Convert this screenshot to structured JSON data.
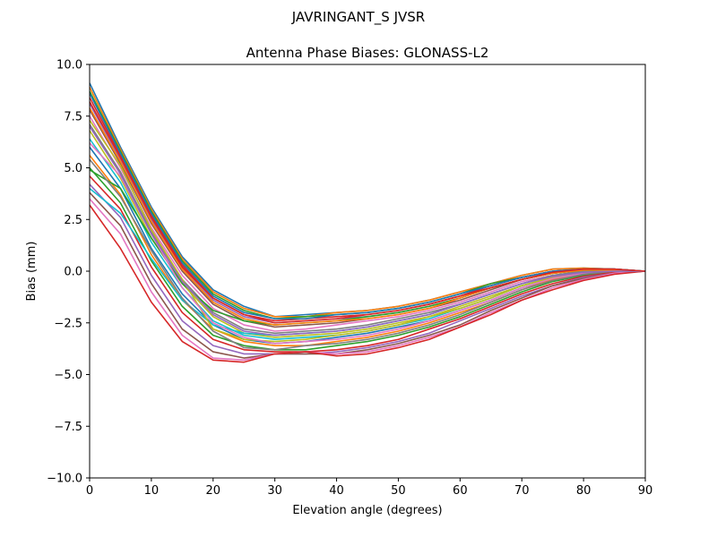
{
  "suptitle": "JAVRINGANT_S    JVSR",
  "chart_data": {
    "type": "line",
    "title": "Antenna Phase Biases: GLONASS-L2",
    "xlabel": "Elevation angle (degrees)",
    "ylabel": "Bias (mm)",
    "xlim": [
      0,
      90
    ],
    "ylim": [
      -10,
      10
    ],
    "xticks": [
      0,
      10,
      20,
      30,
      40,
      50,
      60,
      70,
      80,
      90
    ],
    "yticks": [
      -10.0,
      -7.5,
      -5.0,
      -2.5,
      0.0,
      2.5,
      5.0,
      7.5,
      10.0
    ],
    "xtick_labels": [
      "0",
      "10",
      "20",
      "30",
      "40",
      "50",
      "60",
      "70",
      "80",
      "90"
    ],
    "ytick_labels": [
      "−10.0",
      "−7.5",
      "−5.0",
      "−2.5",
      "0.0",
      "2.5",
      "5.0",
      "7.5",
      "10.0"
    ],
    "grid": false,
    "legend": false,
    "x": [
      0,
      5,
      10,
      15,
      20,
      25,
      30,
      35,
      40,
      45,
      50,
      55,
      60,
      65,
      70,
      75,
      80,
      85,
      90
    ],
    "series": [
      {
        "color": "#1f77b4",
        "values": [
          9.1,
          6.0,
          3.1,
          0.7,
          -0.9,
          -1.7,
          -2.2,
          -2.1,
          -2.0,
          -1.9,
          -1.7,
          -1.4,
          -1.0,
          -0.6,
          -0.2,
          0.1,
          0.15,
          0.1,
          0.0
        ]
      },
      {
        "color": "#ff7f0e",
        "values": [
          8.9,
          5.9,
          3.0,
          0.6,
          -1.0,
          -1.8,
          -2.2,
          -2.2,
          -2.0,
          -1.9,
          -1.7,
          -1.4,
          -1.0,
          -0.6,
          -0.2,
          0.1,
          0.15,
          0.1,
          0.0
        ]
      },
      {
        "color": "#2ca02c",
        "values": [
          8.7,
          5.8,
          2.9,
          0.5,
          -1.1,
          -1.9,
          -2.3,
          -2.2,
          -2.1,
          -2.0,
          -1.8,
          -1.5,
          -1.1,
          -0.6,
          -0.3,
          0.0,
          0.1,
          0.1,
          0.0
        ]
      },
      {
        "color": "#d62728",
        "values": [
          8.4,
          5.6,
          2.7,
          0.3,
          -1.3,
          -2.1,
          -2.4,
          -2.3,
          -2.2,
          -2.1,
          -1.9,
          -1.6,
          -1.2,
          -0.7,
          -0.3,
          0.0,
          0.1,
          0.1,
          0.0
        ]
      },
      {
        "color": "#9467bd",
        "values": [
          8.1,
          5.4,
          2.5,
          0.2,
          -1.4,
          -2.2,
          -2.5,
          -2.4,
          -2.3,
          -2.2,
          -2.0,
          -1.7,
          -1.3,
          -0.8,
          -0.4,
          -0.1,
          0.05,
          0.05,
          0.0
        ]
      },
      {
        "color": "#8c564b",
        "values": [
          7.8,
          5.2,
          2.3,
          0.0,
          -1.6,
          -2.4,
          -2.7,
          -2.6,
          -2.5,
          -2.3,
          -2.1,
          -1.8,
          -1.4,
          -0.9,
          -0.4,
          -0.1,
          0.05,
          0.05,
          0.0
        ]
      },
      {
        "color": "#e377c2",
        "values": [
          7.5,
          5.0,
          2.1,
          -0.2,
          -1.8,
          -2.6,
          -2.9,
          -2.8,
          -2.6,
          -2.4,
          -2.2,
          -1.9,
          -1.5,
          -1.0,
          -0.5,
          -0.2,
          0.0,
          0.05,
          0.0
        ]
      },
      {
        "color": "#7f7f7f",
        "values": [
          7.1,
          4.8,
          1.9,
          -0.4,
          -2.0,
          -2.8,
          -3.0,
          -2.9,
          -2.8,
          -2.6,
          -2.3,
          -2.0,
          -1.6,
          -1.1,
          -0.6,
          -0.2,
          0.0,
          0.05,
          0.0
        ]
      },
      {
        "color": "#bcbd22",
        "values": [
          6.8,
          4.5,
          1.6,
          -0.6,
          -2.2,
          -3.0,
          -3.2,
          -3.1,
          -3.0,
          -2.8,
          -2.5,
          -2.2,
          -1.7,
          -1.2,
          -0.7,
          -0.3,
          -0.05,
          0.0,
          0.0
        ]
      },
      {
        "color": "#17becf",
        "values": [
          6.4,
          4.3,
          1.4,
          -0.8,
          -2.4,
          -3.1,
          -3.3,
          -3.2,
          -3.1,
          -2.9,
          -2.6,
          -2.3,
          -1.8,
          -1.3,
          -0.7,
          -0.3,
          -0.1,
          0.0,
          0.0
        ]
      },
      {
        "color": "#1f77b4",
        "values": [
          6.0,
          4.0,
          1.1,
          -1.1,
          -2.6,
          -3.3,
          -3.5,
          -3.4,
          -3.2,
          -3.0,
          -2.7,
          -2.4,
          -1.9,
          -1.4,
          -0.8,
          -0.4,
          -0.1,
          0.0,
          0.0
        ]
      },
      {
        "color": "#ff7f0e",
        "values": [
          5.6,
          3.7,
          0.8,
          -1.4,
          -2.8,
          -3.4,
          -3.6,
          -3.6,
          -3.4,
          -3.2,
          -2.9,
          -2.5,
          -2.0,
          -1.5,
          -0.9,
          -0.4,
          -0.15,
          0.0,
          0.0
        ]
      },
      {
        "color": "#2ca02c",
        "values": [
          5.0,
          3.3,
          0.5,
          -1.7,
          -3.1,
          -3.6,
          -3.8,
          -3.8,
          -3.6,
          -3.4,
          -3.1,
          -2.7,
          -2.2,
          -1.6,
          -1.0,
          -0.5,
          -0.2,
          -0.05,
          0.0
        ]
      },
      {
        "color": "#d62728",
        "values": [
          4.6,
          3.0,
          0.2,
          -2.0,
          -3.3,
          -3.8,
          -3.9,
          -3.9,
          -3.8,
          -3.6,
          -3.3,
          -2.8,
          -2.3,
          -1.7,
          -1.1,
          -0.6,
          -0.25,
          -0.05,
          0.0
        ]
      },
      {
        "color": "#9467bd",
        "values": [
          4.2,
          2.6,
          -0.2,
          -2.4,
          -3.6,
          -4.0,
          -4.0,
          -4.0,
          -3.9,
          -3.7,
          -3.4,
          -3.0,
          -2.4,
          -1.8,
          -1.2,
          -0.7,
          -0.3,
          -0.1,
          0.0
        ]
      },
      {
        "color": "#8c564b",
        "values": [
          3.8,
          2.2,
          -0.6,
          -2.8,
          -3.9,
          -4.2,
          -4.0,
          -4.0,
          -4.0,
          -3.8,
          -3.5,
          -3.1,
          -2.6,
          -1.9,
          -1.3,
          -0.7,
          -0.35,
          -0.1,
          0.0
        ]
      },
      {
        "color": "#e377c2",
        "values": [
          3.5,
          1.8,
          -1.0,
          -3.1,
          -4.2,
          -4.3,
          -4.0,
          -3.9,
          -4.0,
          -3.9,
          -3.6,
          -3.2,
          -2.7,
          -2.0,
          -1.4,
          -0.8,
          -0.4,
          -0.1,
          0.0
        ]
      },
      {
        "color": "#d62728",
        "values": [
          3.2,
          1.1,
          -1.5,
          -3.4,
          -4.3,
          -4.4,
          -4.0,
          -3.9,
          -4.1,
          -4.0,
          -3.7,
          -3.3,
          -2.7,
          -2.1,
          -1.4,
          -0.9,
          -0.45,
          -0.15,
          0.0
        ]
      },
      {
        "color": "#2ca02c",
        "values": [
          4.9,
          4.0,
          1.6,
          -0.6,
          -1.9,
          -2.4,
          -2.6,
          -2.5,
          -2.4,
          -2.2,
          -2.0,
          -1.7,
          -1.3,
          -0.8,
          -0.4,
          -0.1,
          0.05,
          0.05,
          0.0
        ]
      },
      {
        "color": "#17becf",
        "values": [
          4.0,
          2.8,
          0.6,
          -1.4,
          -2.6,
          -3.0,
          -3.1,
          -3.0,
          -2.9,
          -2.7,
          -2.4,
          -2.1,
          -1.6,
          -1.1,
          -0.6,
          -0.25,
          -0.05,
          0.0,
          0.0
        ]
      },
      {
        "color": "#bcbd22",
        "values": [
          7.3,
          5.1,
          2.0,
          -0.4,
          -2.8,
          -3.3,
          -3.4,
          -3.3,
          -3.1,
          -2.9,
          -2.6,
          -2.2,
          -1.8,
          -1.3,
          -0.7,
          -0.3,
          -0.1,
          0.0,
          0.0
        ]
      },
      {
        "color": "#e377c2",
        "values": [
          6.2,
          4.6,
          1.8,
          -0.8,
          -2.5,
          -3.2,
          -3.5,
          -3.4,
          -3.3,
          -3.1,
          -2.8,
          -2.4,
          -1.9,
          -1.4,
          -0.8,
          -0.35,
          -0.1,
          0.0,
          0.0
        ]
      },
      {
        "color": "#7f7f7f",
        "values": [
          5.4,
          3.6,
          1.0,
          -1.3,
          -2.9,
          -3.7,
          -3.8,
          -3.6,
          -3.5,
          -3.3,
          -3.0,
          -2.6,
          -2.1,
          -1.5,
          -0.9,
          -0.45,
          -0.15,
          0.0,
          0.0
        ]
      },
      {
        "color": "#1f77b4",
        "values": [
          8.6,
          5.7,
          2.8,
          0.4,
          -1.2,
          -2.0,
          -2.3,
          -2.3,
          -2.1,
          -2.0,
          -1.8,
          -1.5,
          -1.1,
          -0.7,
          -0.3,
          0.0,
          0.1,
          0.1,
          0.0
        ]
      },
      {
        "color": "#ff7f0e",
        "values": [
          7.9,
          5.3,
          2.4,
          0.1,
          -1.5,
          -2.3,
          -2.6,
          -2.5,
          -2.4,
          -2.3,
          -2.1,
          -1.8,
          -1.3,
          -0.8,
          -0.4,
          -0.1,
          0.05,
          0.05,
          0.0
        ]
      },
      {
        "color": "#9467bd",
        "values": [
          7.0,
          4.7,
          1.8,
          -0.5,
          -2.1,
          -2.9,
          -3.1,
          -3.0,
          -2.9,
          -2.7,
          -2.4,
          -2.1,
          -1.6,
          -1.1,
          -0.6,
          -0.25,
          -0.05,
          0.0,
          0.0
        ]
      },
      {
        "color": "#d62728",
        "values": [
          8.2,
          5.5,
          2.6,
          0.2,
          -1.3,
          -2.1,
          -2.5,
          -2.4,
          -2.3,
          -2.1,
          -1.9,
          -1.6,
          -1.2,
          -0.8,
          -0.4,
          -0.05,
          0.1,
          0.1,
          0.0
        ]
      }
    ]
  }
}
